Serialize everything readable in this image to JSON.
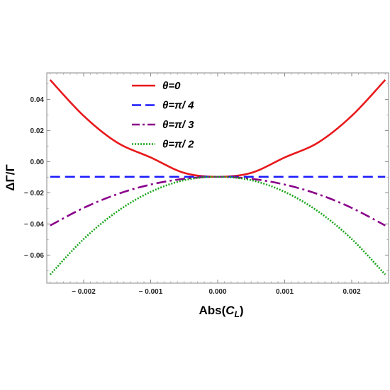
{
  "chart_data": {
    "type": "line",
    "xlabel": "Abs(C_L)",
    "xlabel_base": "Abs(",
    "xlabel_var": "C",
    "xlabel_sub": "L",
    "xlabel_close": ")",
    "ylabel": "ΔΓ/Γ",
    "xlim": [
      -0.00255,
      0.00255
    ],
    "ylim": [
      -0.078,
      0.057
    ],
    "x_ticks": [
      -0.002,
      -0.001,
      0.0,
      0.001,
      0.002
    ],
    "x_tick_labels": [
      "− 0.002",
      "− 0.001",
      "0.000",
      "0.001",
      "0.002"
    ],
    "y_ticks": [
      0.04,
      0.02,
      0.0,
      -0.02,
      -0.04,
      -0.06
    ],
    "y_tick_labels": [
      "0.04",
      "0.02",
      "0.00",
      "− 0.02",
      "− 0.04",
      "− 0.06"
    ],
    "grid": false,
    "legend_position": "top-left",
    "series": [
      {
        "name": "θ=0",
        "color": "#e8191c",
        "style": "solid",
        "x": [
          -0.0025,
          -0.002,
          -0.0015,
          -0.001,
          -0.0005,
          0.0,
          0.0005,
          0.001,
          0.0015,
          0.002,
          0.0025
        ],
        "y": [
          0.0525,
          0.0294,
          0.0123,
          0.0027,
          -0.0072,
          -0.0097,
          -0.0072,
          0.0027,
          0.0123,
          0.0294,
          0.0525
        ]
      },
      {
        "name": "θ=π/ 4",
        "color": "#1a1aff",
        "style": "dashed",
        "x": [
          -0.0025,
          -0.002,
          -0.0015,
          -0.001,
          -0.0005,
          0.0,
          0.0005,
          0.001,
          0.0015,
          0.002,
          0.0025
        ],
        "y": [
          -0.0097,
          -0.0097,
          -0.0097,
          -0.0097,
          -0.0097,
          -0.0097,
          -0.0097,
          -0.0097,
          -0.0097,
          -0.0097,
          -0.0097
        ]
      },
      {
        "name": "θ=π/ 3",
        "color": "#8a008a",
        "style": "dashdot",
        "x": [
          -0.0025,
          -0.002,
          -0.0015,
          -0.001,
          -0.0005,
          0.0,
          0.0005,
          0.001,
          0.0015,
          0.002,
          0.0025
        ],
        "y": [
          -0.041,
          -0.0297,
          -0.0209,
          -0.0147,
          -0.011,
          -0.0097,
          -0.011,
          -0.0147,
          -0.0209,
          -0.0297,
          -0.041
        ]
      },
      {
        "name": "θ=π/ 2",
        "color": "#1aa51a",
        "style": "dotted",
        "x": [
          -0.0025,
          -0.002,
          -0.0015,
          -0.001,
          -0.0005,
          0.0,
          0.0005,
          0.001,
          0.0015,
          0.002,
          0.0025
        ],
        "y": [
          -0.0725,
          -0.0497,
          -0.032,
          -0.0194,
          -0.0119,
          -0.0097,
          -0.0119,
          -0.0194,
          -0.032,
          -0.0497,
          -0.0725
        ]
      }
    ]
  }
}
